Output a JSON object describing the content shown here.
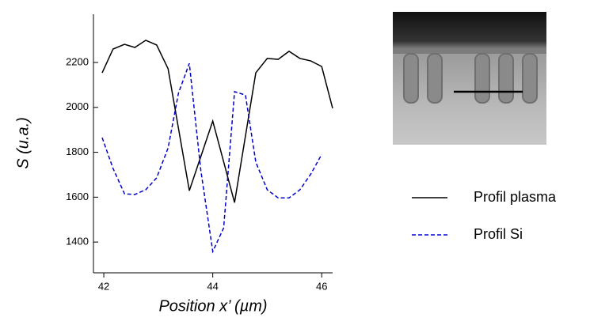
{
  "chart_data": {
    "type": "line",
    "x_label": "Position x’ (µm)",
    "y_label": "S (u.a.)",
    "xlim": [
      41.81,
      46.2
    ],
    "xticks": [
      42,
      44,
      46
    ],
    "ylim": [
      1263,
      2415
    ],
    "yticks": [
      1400,
      1600,
      1800,
      2000,
      2200
    ],
    "legend": "right",
    "series": [
      {
        "name": "Profil plasma",
        "color": "#000000",
        "dash": "solid",
        "x": [
          41.97,
          42.17,
          42.38,
          42.57,
          42.77,
          42.97,
          43.18,
          43.57,
          44.0,
          44.4,
          44.79,
          45.0,
          45.2,
          45.4,
          45.6,
          45.8,
          46.0,
          46.2
        ],
        "values": [
          2154,
          2260,
          2281,
          2267,
          2299,
          2278,
          2172,
          1629,
          1939,
          1576,
          2154,
          2218,
          2214,
          2250,
          2218,
          2207,
          2182,
          1996
        ]
      },
      {
        "name": "Profil Si",
        "color": "#0000cc",
        "dash": "dashed",
        "x": [
          41.97,
          42.17,
          42.38,
          42.57,
          42.77,
          42.97,
          43.18,
          43.37,
          43.57,
          43.78,
          44.0,
          44.2,
          44.4,
          44.6,
          44.79,
          45.0,
          45.2,
          45.4,
          45.6,
          45.8,
          46.0
        ],
        "values": [
          1865,
          1728,
          1615,
          1612,
          1633,
          1686,
          1819,
          2063,
          2196,
          1721,
          1358,
          1463,
          2070,
          2055,
          1756,
          1633,
          1597,
          1597,
          1633,
          1703,
          1791
        ]
      }
    ]
  }
}
